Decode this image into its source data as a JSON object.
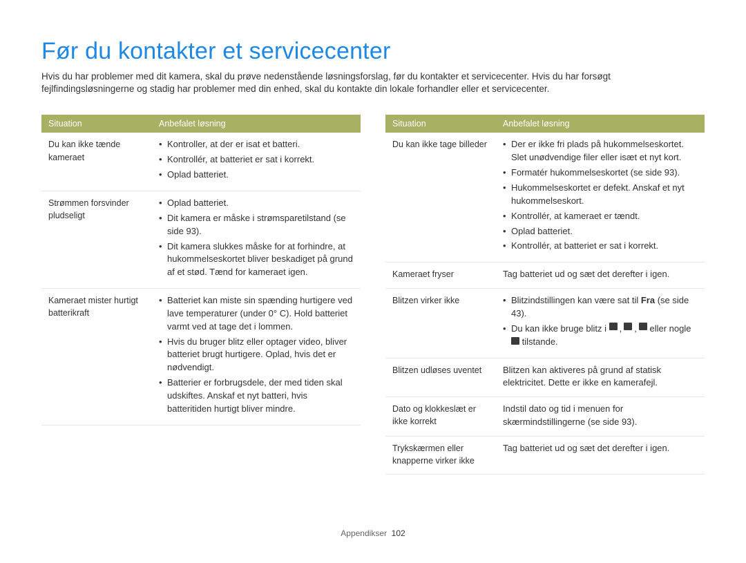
{
  "title": "Før du kontakter et servicecenter",
  "intro": "Hvis du har problemer med dit kamera, skal du prøve nedenstående løsningsforslag, før du kontakter et servicecenter. Hvis du har forsøgt fejlfindingsløsningerne og stadig har problemer med din enhed, skal du kontakte din lokale forhandler eller et servicecenter.",
  "headers": {
    "situation": "Situation",
    "solution": "Anbefalet løsning"
  },
  "left": [
    {
      "situation": "Du kan ikke tænde kameraet",
      "bullets": [
        "Kontroller, at der er isat et batteri.",
        "Kontrollér, at batteriet er sat i korrekt.",
        "Oplad batteriet."
      ]
    },
    {
      "situation": "Strømmen forsvinder pludseligt",
      "bullets": [
        "Oplad batteriet.",
        "Dit kamera er måske i strømsparetilstand (se side 93).",
        "Dit kamera slukkes måske for at forhindre, at hukommelseskortet bliver beskadiget på grund af et stød. Tænd for kameraet igen."
      ]
    },
    {
      "situation": "Kameraet mister hurtigt batterikraft",
      "bullets": [
        "Batteriet kan miste sin spænding hurtigere ved lave temperaturer (under 0° C). Hold batteriet varmt ved at tage det i lommen.",
        "Hvis du bruger blitz eller optager video, bliver batteriet brugt hurtigere. Oplad, hvis det er nødvendigt.",
        "Batterier er forbrugsdele, der med tiden skal udskiftes. Anskaf et nyt batteri, hvis batteritiden hurtigt bliver mindre."
      ]
    }
  ],
  "right": [
    {
      "situation": "Du kan ikke tage billeder",
      "bullets": [
        "Der er ikke fri plads på hukommelseskortet. Slet unødvendige filer eller isæt et nyt kort.",
        "Formatér hukommelseskortet (se side 93).",
        "Hukommelseskortet er defekt. Anskaf et nyt hukommelseskort.",
        "Kontrollér, at kameraet er tændt.",
        "Oplad batteriet.",
        "Kontrollér, at batteriet er sat i korrekt."
      ]
    },
    {
      "situation": "Kameraet fryser",
      "plain": "Tag batteriet ud og sæt det derefter i igen."
    },
    {
      "situation": "Blitzen virker ikke",
      "special": {
        "pre": "Blitzindstillingen kan være sat til ",
        "bold": "Fra",
        "post": " (se side 43).",
        "line2a": "Du kan ikke bruge blitz i ",
        "line2b": " eller nogle ",
        "line2c": " tilstande."
      }
    },
    {
      "situation": "Blitzen udløses uventet",
      "plain": "Blitzen kan aktiveres på grund af statisk elektricitet. Dette er ikke en kamerafejl."
    },
    {
      "situation": "Dato og klokkeslæt er ikke korrekt",
      "plain": "Indstil dato og tid i menuen for skærmindstillingerne (se side 93)."
    },
    {
      "situation": "Trykskærmen eller knapperne virker ikke",
      "plain": "Tag batteriet ud og sæt det derefter i igen."
    }
  ],
  "footer": {
    "section": "Appendikser",
    "page": "102"
  },
  "colors": {
    "accent": "#1e88e5",
    "header_bg": "#a8b063",
    "border": "#e6e6e6"
  }
}
